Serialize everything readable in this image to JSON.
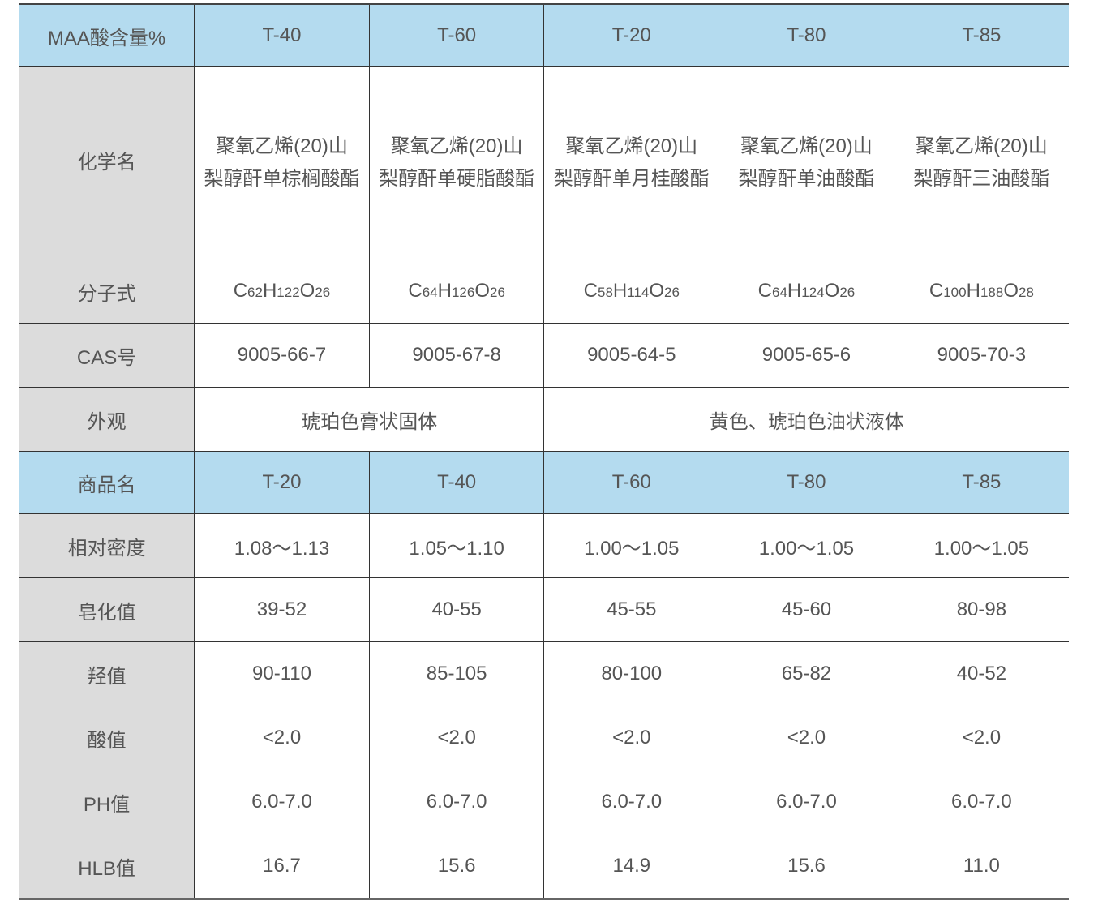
{
  "header1": [
    "MAA酸含量%",
    "T-40",
    "T-60",
    "T-20",
    "T-80",
    "T-85"
  ],
  "chem": {
    "label": "化学名",
    "values": [
      [
        "聚氧乙烯(20)山",
        "梨醇酐单棕榈酸酯"
      ],
      [
        "聚氧乙烯(20)山",
        "梨醇酐单硬脂酸酯"
      ],
      [
        "聚氧乙烯(20)山",
        "梨醇酐单月桂酸酯"
      ],
      [
        "聚氧乙烯(20)山",
        "梨醇酐单油酸酯"
      ],
      [
        "聚氧乙烯(20)山",
        "梨醇酐三油酸酯"
      ]
    ]
  },
  "formula": {
    "label": "分子式",
    "values": [
      [
        "62",
        "122",
        "26"
      ],
      [
        "64",
        "126",
        "26"
      ],
      [
        "58",
        "114",
        "26"
      ],
      [
        "64",
        "124",
        "26"
      ],
      [
        "100",
        "188",
        "28"
      ]
    ]
  },
  "cas": {
    "label": "CAS号",
    "values": [
      "9005-66-7",
      "9005-67-8",
      "9005-64-5",
      "9005-65-6",
      "9005-70-3"
    ]
  },
  "appearance": {
    "label": "外观",
    "values": [
      "琥珀色膏状固体",
      "黄色、琥珀色油状液体"
    ]
  },
  "header2": [
    "商品名",
    "T-20",
    "T-40",
    "T-60",
    "T-80",
    "T-85"
  ],
  "rows": [
    {
      "label": "相对密度",
      "values": [
        "1.08～1.13",
        "1.05～1.10",
        "1.00～1.05",
        "1.00～1.05",
        "1.00～1.05"
      ]
    },
    {
      "label": "皂化值",
      "values": [
        "39-52",
        "40-55",
        "45-55",
        "45-60",
        "80-98"
      ]
    },
    {
      "label": "羟值",
      "values": [
        "90-110",
        "85-105",
        "80-100",
        "65-82",
        "40-52"
      ]
    },
    {
      "label": "酸值",
      "values": [
        "<2.0",
        "<2.0",
        "<2.0",
        "<2.0",
        "<2.0"
      ]
    },
    {
      "label": "PH值",
      "values": [
        "6.0-7.0",
        "6.0-7.0",
        "6.0-7.0",
        "6.0-7.0",
        "6.0-7.0"
      ]
    },
    {
      "label": "HLB值",
      "values": [
        "16.7",
        "15.6",
        "14.9",
        "15.6",
        "11.0"
      ]
    }
  ]
}
